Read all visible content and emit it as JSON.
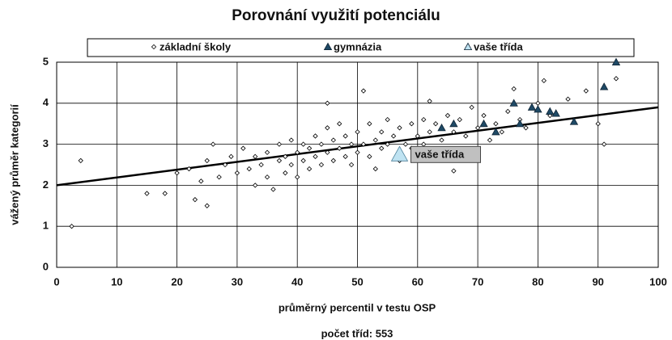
{
  "chart_data": {
    "type": "scatter",
    "title": "Porovnání využití potenciálu",
    "x_label": "průměrný percentil v testu OSP",
    "y_label": "vážený průměr kategorií",
    "footer": "počet tříd: 553",
    "xlim": [
      0,
      100
    ],
    "ylim": [
      0,
      5
    ],
    "xticks": [
      0,
      10,
      20,
      30,
      40,
      50,
      60,
      70,
      80,
      90,
      100
    ],
    "yticks": [
      0,
      1,
      2,
      3,
      4,
      5
    ],
    "grid": true,
    "legend": "top",
    "series": [
      {
        "name": "základní školy",
        "color": "#ffffff",
        "marker": "diamond",
        "x": [
          2.5,
          4,
          15,
          18,
          20,
          22,
          23,
          24,
          25,
          25,
          26,
          27,
          28,
          29,
          30,
          31,
          32,
          33,
          33,
          34,
          35,
          35,
          36,
          37,
          37,
          38,
          38,
          39,
          39,
          40,
          40,
          41,
          41,
          42,
          42,
          43,
          43,
          44,
          44,
          45,
          45,
          45,
          46,
          46,
          47,
          47,
          48,
          48,
          49,
          49,
          50,
          50,
          51,
          51,
          52,
          52,
          53,
          53,
          54,
          54,
          55,
          55,
          56,
          57,
          57,
          58,
          59,
          59,
          60,
          61,
          61,
          62,
          62,
          63,
          64,
          65,
          66,
          66,
          67,
          68,
          69,
          70,
          71,
          72,
          73,
          74,
          75,
          76,
          77,
          78,
          80,
          81,
          82,
          85,
          88,
          90,
          91,
          93
        ],
        "values": [
          1,
          2.6,
          1.8,
          1.8,
          2.3,
          2.4,
          1.65,
          2.1,
          1.5,
          2.6,
          3,
          2.2,
          2.5,
          2.7,
          2.3,
          2.9,
          2.4,
          2.0,
          2.7,
          2.5,
          2.8,
          2.2,
          1.9,
          2.6,
          3.0,
          2.3,
          2.7,
          2.5,
          3.1,
          2.2,
          2.8,
          2.6,
          3.0,
          2.4,
          2.9,
          2.7,
          3.2,
          2.5,
          3.0,
          2.8,
          3.4,
          4.0,
          2.6,
          3.1,
          2.9,
          3.5,
          2.7,
          3.2,
          3.0,
          2.5,
          2.8,
          3.3,
          3.0,
          4.3,
          2.7,
          3.5,
          3.1,
          2.4,
          3.3,
          2.9,
          3.0,
          3.6,
          3.2,
          3.4,
          2.6,
          3.0,
          3.5,
          2.9,
          3.2,
          3.6,
          3.0,
          4.05,
          3.3,
          3.5,
          3.1,
          3.7,
          2.35,
          3.3,
          3.6,
          3.2,
          3.9,
          3.4,
          3.7,
          3.1,
          3.5,
          3.3,
          3.8,
          4.35,
          3.6,
          3.4,
          4.0,
          4.55,
          3.7,
          4.1,
          4.3,
          3.5,
          3.0,
          4.6
        ]
      },
      {
        "name": "gymnázia",
        "color": "#1f4a66",
        "marker": "triangle",
        "x": [
          64,
          66,
          71,
          73,
          76,
          77,
          79,
          80,
          82,
          83,
          86,
          91,
          93
        ],
        "values": [
          3.4,
          3.5,
          3.5,
          3.3,
          4.0,
          3.5,
          3.9,
          3.85,
          3.8,
          3.75,
          3.55,
          4.4,
          5.0
        ]
      },
      {
        "name": "vaše třída",
        "color": "#bfe3f2",
        "marker": "triangle-large",
        "x": [
          57
        ],
        "values": [
          2.75
        ],
        "annotation": "vaše třída"
      }
    ],
    "trend_line": {
      "x": [
        0,
        100
      ],
      "values": [
        2,
        3.9
      ],
      "color": "#000000"
    }
  }
}
